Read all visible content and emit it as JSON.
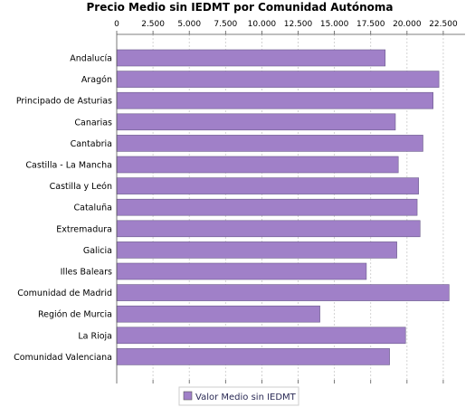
{
  "chart_data": {
    "type": "bar",
    "orientation": "horizontal",
    "title": "Precio Medio sin IEDMT por Comunidad Autónoma",
    "xlabel": "",
    "ylabel": "",
    "xlim": [
      0,
      24000
    ],
    "ticks": [
      {
        "value": 0,
        "label": "0"
      },
      {
        "value": 2500,
        "label": "2.500"
      },
      {
        "value": 5000,
        "label": "5.000"
      },
      {
        "value": 7500,
        "label": "7.500"
      },
      {
        "value": 10000,
        "label": "10.000"
      },
      {
        "value": 12500,
        "label": "12.500"
      },
      {
        "value": 15000,
        "label": "15.000"
      },
      {
        "value": 17500,
        "label": "17.500"
      },
      {
        "value": 20000,
        "label": "20.000"
      },
      {
        "value": 22500,
        "label": "22.500"
      }
    ],
    "categories": [
      "Andalucía",
      "Aragón",
      "Principado de Asturias",
      "Canarias",
      "Cantabria",
      "Castilla - La Mancha",
      "Castilla y León",
      "Cataluña",
      "Extremadura",
      "Galicia",
      "Illes Balears",
      "Comunidad de Madrid",
      "Región de Murcia",
      "La Rioja",
      "Comunidad Valenciana"
    ],
    "series": [
      {
        "name": "Valor Medio sin IEDMT",
        "color": "#a080c8",
        "values": [
          18500,
          22200,
          21800,
          19200,
          21100,
          19400,
          20800,
          20700,
          20900,
          19300,
          17200,
          22900,
          14000,
          19900,
          18800
        ]
      }
    ],
    "grid": true,
    "legend": "bottom"
  }
}
